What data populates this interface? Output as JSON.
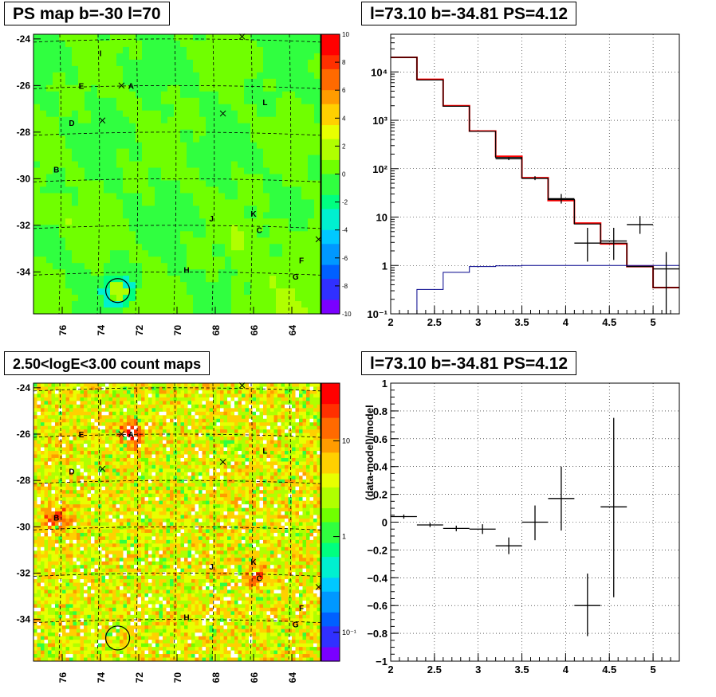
{
  "panels": {
    "ps_map_title": "PS map b=-30 l=70",
    "count_map_title": "2.50<logE<3.00 count maps",
    "spectrum_title": "l=73.10 b=-34.81 PS=4.12",
    "residual_title": "l=73.10 b=-34.81 PS=4.12"
  },
  "chart_data": [
    {
      "id": "ps_map",
      "type": "heatmap",
      "title": "PS map b=-30 l=70",
      "x_ticks": [
        "76",
        "74",
        "72",
        "70",
        "68",
        "66",
        "64"
      ],
      "x_tick_values": [
        76,
        74,
        72,
        70,
        68,
        66,
        64
      ],
      "y_ticks": [
        "-24",
        "-26",
        "-28",
        "-30",
        "-32",
        "-34"
      ],
      "y_tick_values": [
        -24,
        -26,
        -28,
        -30,
        -32,
        -34
      ],
      "xlim": [
        77.5,
        62.5
      ],
      "ylim": [
        -35.8,
        -23.8
      ],
      "colorbar_ticks": [
        "10",
        "8",
        "6",
        "4",
        "2",
        "0",
        "-2",
        "-4",
        "-6",
        "-8",
        "-10"
      ],
      "colorbar_range": [
        -10,
        10
      ],
      "sources": [
        {
          "label": "I",
          "l": 74.0,
          "b": -24.6
        },
        {
          "label": "A",
          "l": 72.4,
          "b": -26.0
        },
        {
          "label": "E",
          "l": 75.0,
          "b": -26.0
        },
        {
          "label": "L",
          "l": 65.4,
          "b": -26.7
        },
        {
          "label": "D",
          "l": 75.5,
          "b": -27.6
        },
        {
          "label": "B",
          "l": 76.3,
          "b": -29.6
        },
        {
          "label": "J",
          "l": 68.2,
          "b": -31.7
        },
        {
          "label": "K",
          "l": 66.0,
          "b": -31.5
        },
        {
          "label": "C",
          "l": 65.7,
          "b": -32.2
        },
        {
          "label": "F",
          "l": 63.5,
          "b": -33.5
        },
        {
          "label": "H",
          "l": 69.5,
          "b": -33.9
        },
        {
          "label": "G",
          "l": 63.8,
          "b": -34.2
        }
      ],
      "crosses": [
        {
          "l": 66.6,
          "b": -23.9
        },
        {
          "l": 72.9,
          "b": -26.0
        },
        {
          "l": 67.6,
          "b": -27.2
        },
        {
          "l": 73.9,
          "b": -27.5
        },
        {
          "l": 62.6,
          "b": -32.6
        }
      ],
      "circle": {
        "l": 73.1,
        "b": -34.8
      }
    },
    {
      "id": "count_map",
      "type": "heatmap",
      "title": "2.50<logE<3.00 count maps",
      "x_ticks": [
        "76",
        "74",
        "72",
        "70",
        "68",
        "66",
        "64"
      ],
      "x_tick_values": [
        76,
        74,
        72,
        70,
        68,
        66,
        64
      ],
      "y_ticks": [
        "-24",
        "-26",
        "-28",
        "-30",
        "-32",
        "-34"
      ],
      "y_tick_values": [
        -24,
        -26,
        -28,
        -30,
        -32,
        -34
      ],
      "xlim": [
        77.5,
        62.5
      ],
      "ylim": [
        -35.8,
        -23.8
      ],
      "colorbar_ticks": [
        "10",
        "1",
        "10⁻¹"
      ],
      "colorbar_tick_values": [
        10,
        1,
        0.1
      ],
      "colorbar_range": [
        0.05,
        40
      ],
      "colorbar_log": true,
      "bright_spots": [
        {
          "label": "A",
          "l": 72.4,
          "b": -26.0,
          "intensity": 1.0
        },
        {
          "label": "B",
          "l": 76.3,
          "b": -29.6,
          "intensity": 0.8
        },
        {
          "label": "C",
          "l": 65.7,
          "b": -32.2,
          "intensity": 0.55
        }
      ]
    },
    {
      "id": "spectrum",
      "type": "line",
      "title": "l=73.10 b=-34.81 PS=4.12",
      "xlim": [
        2,
        5.3
      ],
      "ylim": [
        0.1,
        60000
      ],
      "ylog": true,
      "x_ticks": [
        "2",
        "2.5",
        "3",
        "3.5",
        "4",
        "4.5",
        "5"
      ],
      "x_tick_values": [
        2,
        2.5,
        3,
        3.5,
        4,
        4.5,
        5
      ],
      "y_ticks": [
        "10⁻¹",
        "1",
        "10",
        "10²",
        "10³",
        "10⁴"
      ],
      "y_tick_values": [
        0.1,
        1,
        10,
        100,
        1000,
        10000
      ],
      "grid": true,
      "bin_edges": [
        2.0,
        2.3,
        2.6,
        2.9,
        3.2,
        3.5,
        3.8,
        4.1,
        4.4,
        4.7,
        5.0,
        5.3
      ],
      "series": [
        {
          "color": "#ff0000",
          "style": "step",
          "values": [
            20000,
            7000,
            2000,
            600,
            180,
            65,
            22,
            7.5,
            2.8,
            0.95,
            0.35
          ]
        },
        {
          "color": "#000000",
          "style": "step",
          "values": [
            20000,
            6800,
            1950,
            590,
            170,
            63,
            23,
            7.2,
            2.9,
            0.95,
            0.35
          ]
        },
        {
          "color": "#00008b",
          "style": "step",
          "values": [
            0.1,
            0.32,
            0.72,
            0.95,
            0.98,
            1.0,
            1.0,
            1.0,
            1.0,
            1.0,
            1.0
          ]
        },
        {
          "color": "#000000",
          "style": "errorbar",
          "points": [
            {
              "x": 3.35,
              "xerr": 0.15,
              "y": 160,
              "ylo": 150,
              "yhi": 170
            },
            {
              "x": 3.65,
              "xerr": 0.15,
              "y": 63,
              "ylo": 58,
              "yhi": 70
            },
            {
              "x": 3.95,
              "xerr": 0.15,
              "y": 24,
              "ylo": 19,
              "yhi": 30
            },
            {
              "x": 4.25,
              "xerr": 0.15,
              "y": 2.9,
              "ylo": 1.2,
              "yhi": 6.0
            },
            {
              "x": 4.55,
              "xerr": 0.15,
              "y": 3.2,
              "ylo": 1.3,
              "yhi": 6.0
            },
            {
              "x": 4.85,
              "xerr": 0.15,
              "y": 7.0,
              "ylo": 4.5,
              "yhi": 10.5
            },
            {
              "x": 5.15,
              "xerr": 0.15,
              "y": 0.85,
              "ylo": 0.1,
              "yhi": 1.9
            }
          ]
        }
      ]
    },
    {
      "id": "residual",
      "type": "scatter",
      "title": "l=73.10 b=-34.81 PS=4.12",
      "ylabel": "(data-model)/model",
      "xlim": [
        2,
        5.3
      ],
      "ylim": [
        -1,
        1
      ],
      "x_ticks": [
        "2",
        "2.5",
        "3",
        "3.5",
        "4",
        "4.5",
        "5"
      ],
      "x_tick_values": [
        2,
        2.5,
        3,
        3.5,
        4,
        4.5,
        5
      ],
      "y_ticks": [
        "−1",
        "−0.8",
        "−0.6",
        "−0.4",
        "−0.2",
        "0",
        "0.2",
        "0.4",
        "0.6",
        "0.8",
        "1"
      ],
      "y_tick_values": [
        -1,
        -0.8,
        -0.6,
        -0.4,
        -0.2,
        0,
        0.2,
        0.4,
        0.6,
        0.8,
        1
      ],
      "grid": true,
      "points": [
        {
          "x": 2.15,
          "xerr": 0.15,
          "y": 0.04,
          "ylo": 0.025,
          "yhi": 0.055
        },
        {
          "x": 2.45,
          "xerr": 0.15,
          "y": -0.02,
          "ylo": -0.035,
          "yhi": -0.005
        },
        {
          "x": 2.75,
          "xerr": 0.15,
          "y": -0.045,
          "ylo": -0.065,
          "yhi": -0.025
        },
        {
          "x": 3.05,
          "xerr": 0.15,
          "y": -0.05,
          "ylo": -0.085,
          "yhi": -0.015
        },
        {
          "x": 3.35,
          "xerr": 0.15,
          "y": -0.17,
          "ylo": -0.23,
          "yhi": -0.11
        },
        {
          "x": 3.65,
          "xerr": 0.15,
          "y": 0.0,
          "ylo": -0.13,
          "yhi": 0.12
        },
        {
          "x": 3.95,
          "xerr": 0.15,
          "y": 0.17,
          "ylo": -0.06,
          "yhi": 0.4
        },
        {
          "x": 4.25,
          "xerr": 0.15,
          "y": -0.6,
          "ylo": -0.82,
          "yhi": -0.37
        },
        {
          "x": 4.55,
          "xerr": 0.15,
          "y": 0.11,
          "ylo": -0.54,
          "yhi": 0.75
        }
      ]
    }
  ]
}
